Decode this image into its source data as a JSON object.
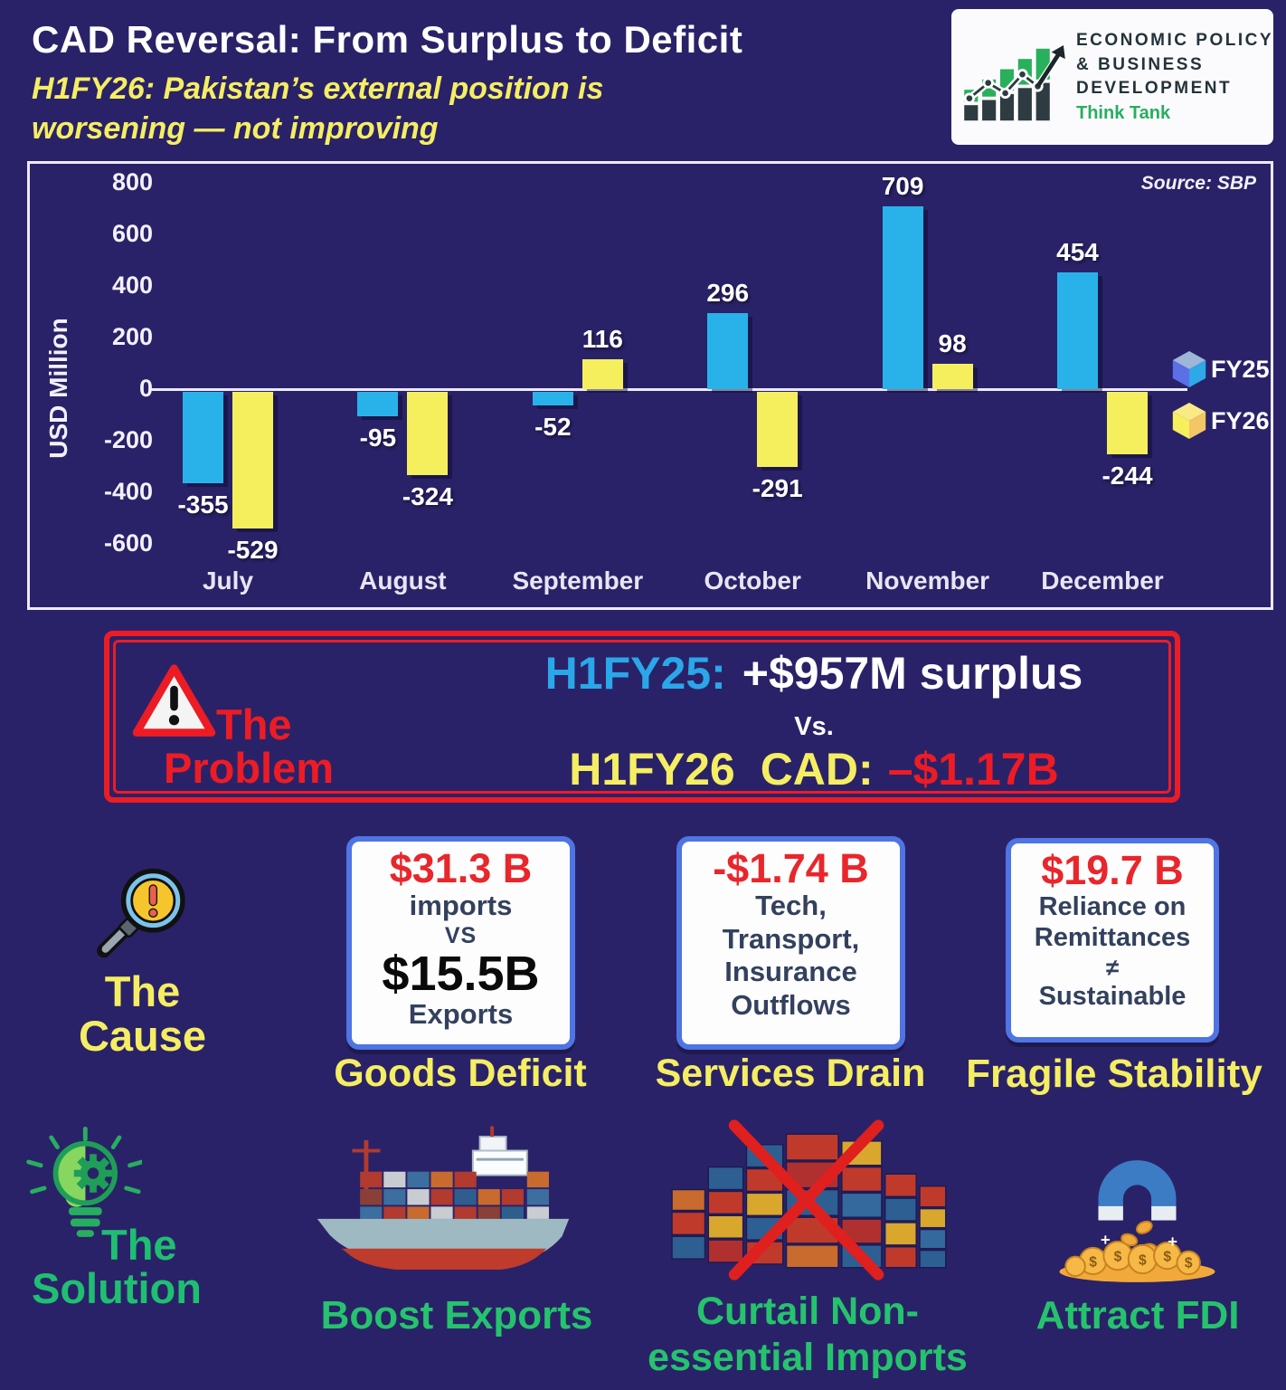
{
  "colors": {
    "background": "#2A2268",
    "accent_yellow": "#F5EE62",
    "accent_red": "#ED1C24",
    "accent_blue": "#2AA7E8",
    "accent_green": "#1FBF72",
    "card_border": "#4F74E3",
    "navy_text": "#33415E"
  },
  "header": {
    "title": "CAD Reversal: From Surplus to Deficit",
    "subtitle": "H1FY26: Pakistan’s external position is worsening — not improving"
  },
  "logo": {
    "line1": "ECONOMIC POLICY",
    "line2": "& BUSINESS",
    "line3": "DEVELOPMENT",
    "tagline": "Think Tank"
  },
  "chart_data": {
    "type": "bar",
    "title": "",
    "xlabel": "",
    "ylabel": "USD Million",
    "source": "Source: SBP",
    "categories": [
      "July",
      "August",
      "September",
      "October",
      "November",
      "December"
    ],
    "series": [
      {
        "name": "FY25",
        "color": "#29B2EA",
        "values": [
          -355,
          -95,
          -52,
          296,
          709,
          454
        ]
      },
      {
        "name": "FY26",
        "color": "#F5EF5E",
        "values": [
          -529,
          -324,
          116,
          -291,
          98,
          -244
        ]
      }
    ],
    "yticks": [
      800,
      600,
      400,
      200,
      0,
      -200,
      -400,
      -600
    ],
    "ylim": [
      -600,
      800
    ],
    "grid": false,
    "legend_position": "right",
    "legend": [
      {
        "label": "FY25",
        "cube_top": "#9FB6D8",
        "cube_left": "#5B6FE6",
        "cube_right": "#2DA9E8"
      },
      {
        "label": "FY26",
        "cube_top": "#F9EA86",
        "cube_left": "#F7EF5C",
        "cube_right": "#F3C666"
      }
    ]
  },
  "problem": {
    "heading_line1": "The",
    "heading_line2": "Problem",
    "line1_label": "H1FY25:",
    "line1_value": "+$957M surplus",
    "vs": "Vs.",
    "line2_label": "H1FY26",
    "line2_mid": "CAD:",
    "line2_value": "–$1.17B"
  },
  "cause": {
    "heading_line1": "The",
    "heading_line2": "Cause",
    "card1": {
      "value": "$31.3 B",
      "sub1": "imports",
      "vs": "VS",
      "value2": "$15.5B",
      "sub2": "Exports",
      "label": "Goods Deficit"
    },
    "card2": {
      "value": "-$1.74 B",
      "lines": [
        "Tech,",
        "Transport,",
        "Insurance",
        "Outflows"
      ],
      "label": "Services Drain"
    },
    "card3": {
      "value": "$19.7 B",
      "lines": [
        "Reliance on",
        "Remittances",
        "≠",
        "Sustainable"
      ],
      "label": "Fragile Stability"
    }
  },
  "solution": {
    "heading_line1": "The",
    "heading_line2": "Solution",
    "item1_label": "Boost Exports",
    "item2_label": "Curtail Non-essential Imports",
    "item3_label": "Attract FDI"
  }
}
